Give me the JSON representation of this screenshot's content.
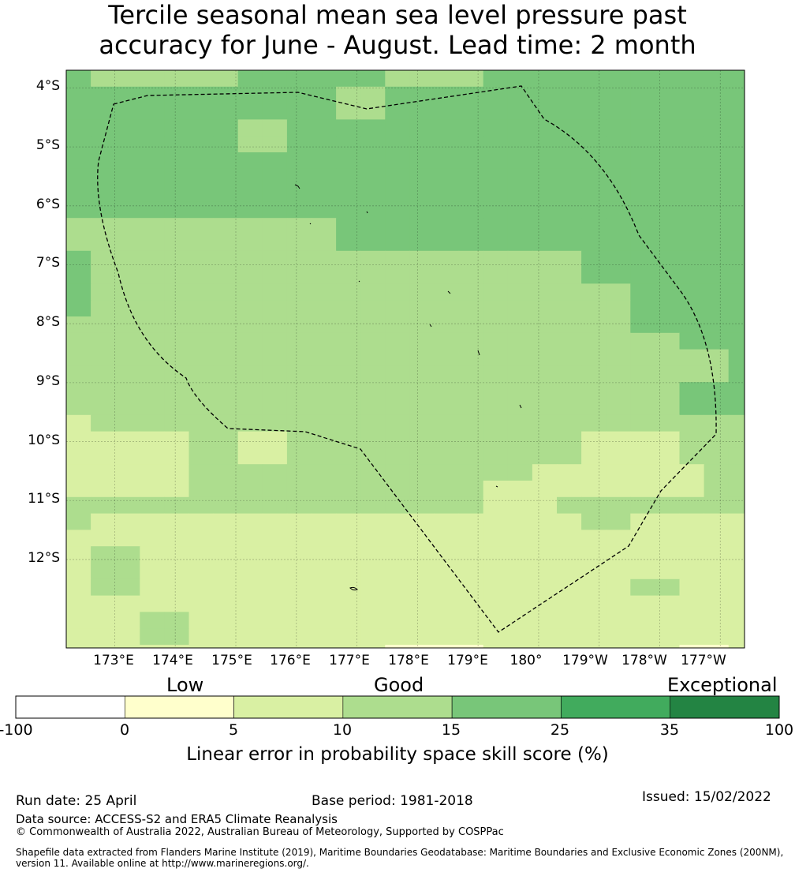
{
  "title": {
    "line1": "Tercile seasonal mean sea level pressure past",
    "line2": "accuracy for June - August. Lead time: 2 month"
  },
  "map": {
    "lon_range": [
      172.2,
      -176.6
    ],
    "lat_range": [
      -3.7,
      -13.5
    ],
    "lat_labels": [
      "4°S",
      "5°S",
      "6°S",
      "7°S",
      "8°S",
      "9°S",
      "10°S",
      "11°S",
      "12°S"
    ],
    "lat_values": [
      -4,
      -5,
      -6,
      -7,
      -8,
      -9,
      -10,
      -11,
      -12
    ],
    "lon_labels": [
      "173°E",
      "174°E",
      "175°E",
      "176°E",
      "177°E",
      "178°E",
      "179°E",
      "180°",
      "179°W",
      "178°W",
      "177°W"
    ],
    "lon_values": [
      173,
      174,
      175,
      176,
      177,
      178,
      179,
      180,
      181,
      182,
      183
    ],
    "grid_lines": true,
    "boundary_style": "dashed black line (Exclusive Economic Zone)",
    "skill_grid_description": "Tercile LEPS skill score cells, categories 0-5,5-10,10-15,15-25"
  },
  "colorbar": {
    "category_labels": [
      "Low",
      "Good",
      "Exceptional"
    ],
    "ticks": [
      "-100",
      "0",
      "5",
      "10",
      "15",
      "25",
      "35",
      "100"
    ],
    "colors": [
      "#ffffff",
      "#ffffcc",
      "#d9f0a3",
      "#addd8e",
      "#78c679",
      "#41ab5d",
      "#238443"
    ],
    "label": "Linear error in probability space skill score (%)"
  },
  "footer": {
    "run_date": "Run date: 25 April",
    "base_period": "Base period: 1981-2018",
    "issued": "Issued: 15/02/2022",
    "data_source": "Data source: ACCESS-S2 and ERA5 Climate Reanalysis",
    "copyright": "© Commonwealth of Australia 2022, Australian Bureau of Meteorology, Supported by COSPPac",
    "shapefile": "Shapefile data extracted from Flanders Marine Institute (2019), Maritime Boundaries Geodatabase: Maritime Boundaries and Exclusive Economic Zones (200NM), version 11. Available online at http://www.marineregions.org/."
  }
}
